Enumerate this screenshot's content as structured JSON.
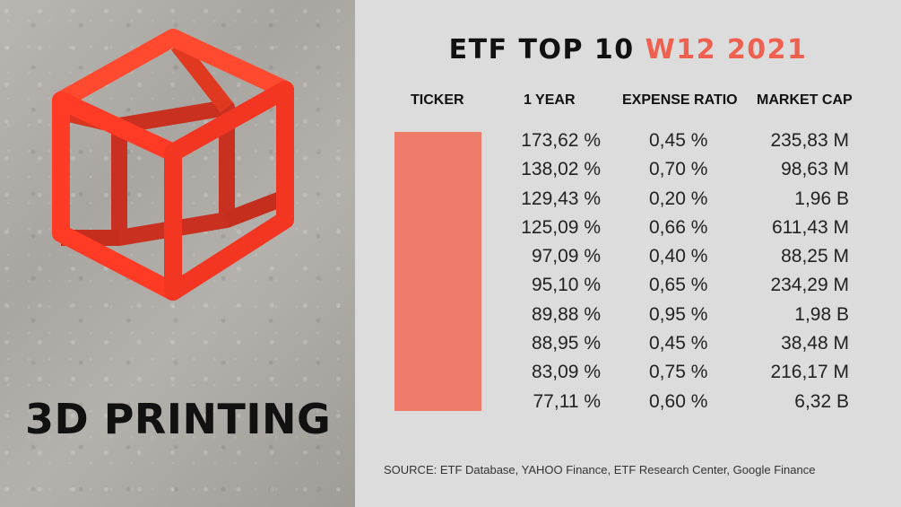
{
  "brand": {
    "title": "3D PRINTING"
  },
  "header": {
    "title_prefix": "ETF TOP 10 ",
    "title_accent": "W12 2021"
  },
  "table": {
    "columns": [
      "TICKER",
      "1 YEAR",
      "EXPENSE RATIO",
      "MARKET CAP"
    ],
    "rows": [
      {
        "year": "173,62 %",
        "expense": "0,45 %",
        "cap": "235,83 M"
      },
      {
        "year": "138,02 %",
        "expense": "0,70 %",
        "cap": "98,63 M"
      },
      {
        "year": "129,43 %",
        "expense": "0,20 %",
        "cap": "1,96 B"
      },
      {
        "year": "125,09 %",
        "expense": "0,66 %",
        "cap": "611,43 M"
      },
      {
        "year": "97,09 %",
        "expense": "0,40 %",
        "cap": "88,25 M"
      },
      {
        "year": "95,10 %",
        "expense": "0,65 %",
        "cap": "234,29 M"
      },
      {
        "year": "89,88 %",
        "expense": "0,95 %",
        "cap": "1,98 B"
      },
      {
        "year": "88,95 %",
        "expense": "0,45 %",
        "cap": "38,48 M"
      },
      {
        "year": "83,09 %",
        "expense": "0,75 %",
        "cap": "216,17 M"
      },
      {
        "year": "77,11 %",
        "expense": "0,60 %",
        "cap": "6,32 B"
      }
    ]
  },
  "footer": {
    "source": "SOURCE: ETF Database, YAHOO Finance, ETF  Research Center, Google Finance"
  },
  "colors": {
    "accent": "#f0604f",
    "ticker_block": "#ef7b6a",
    "panel_bg": "#dcdcdc",
    "cube": "#ff3b26"
  },
  "icons": [
    "3d-cube-icon"
  ]
}
